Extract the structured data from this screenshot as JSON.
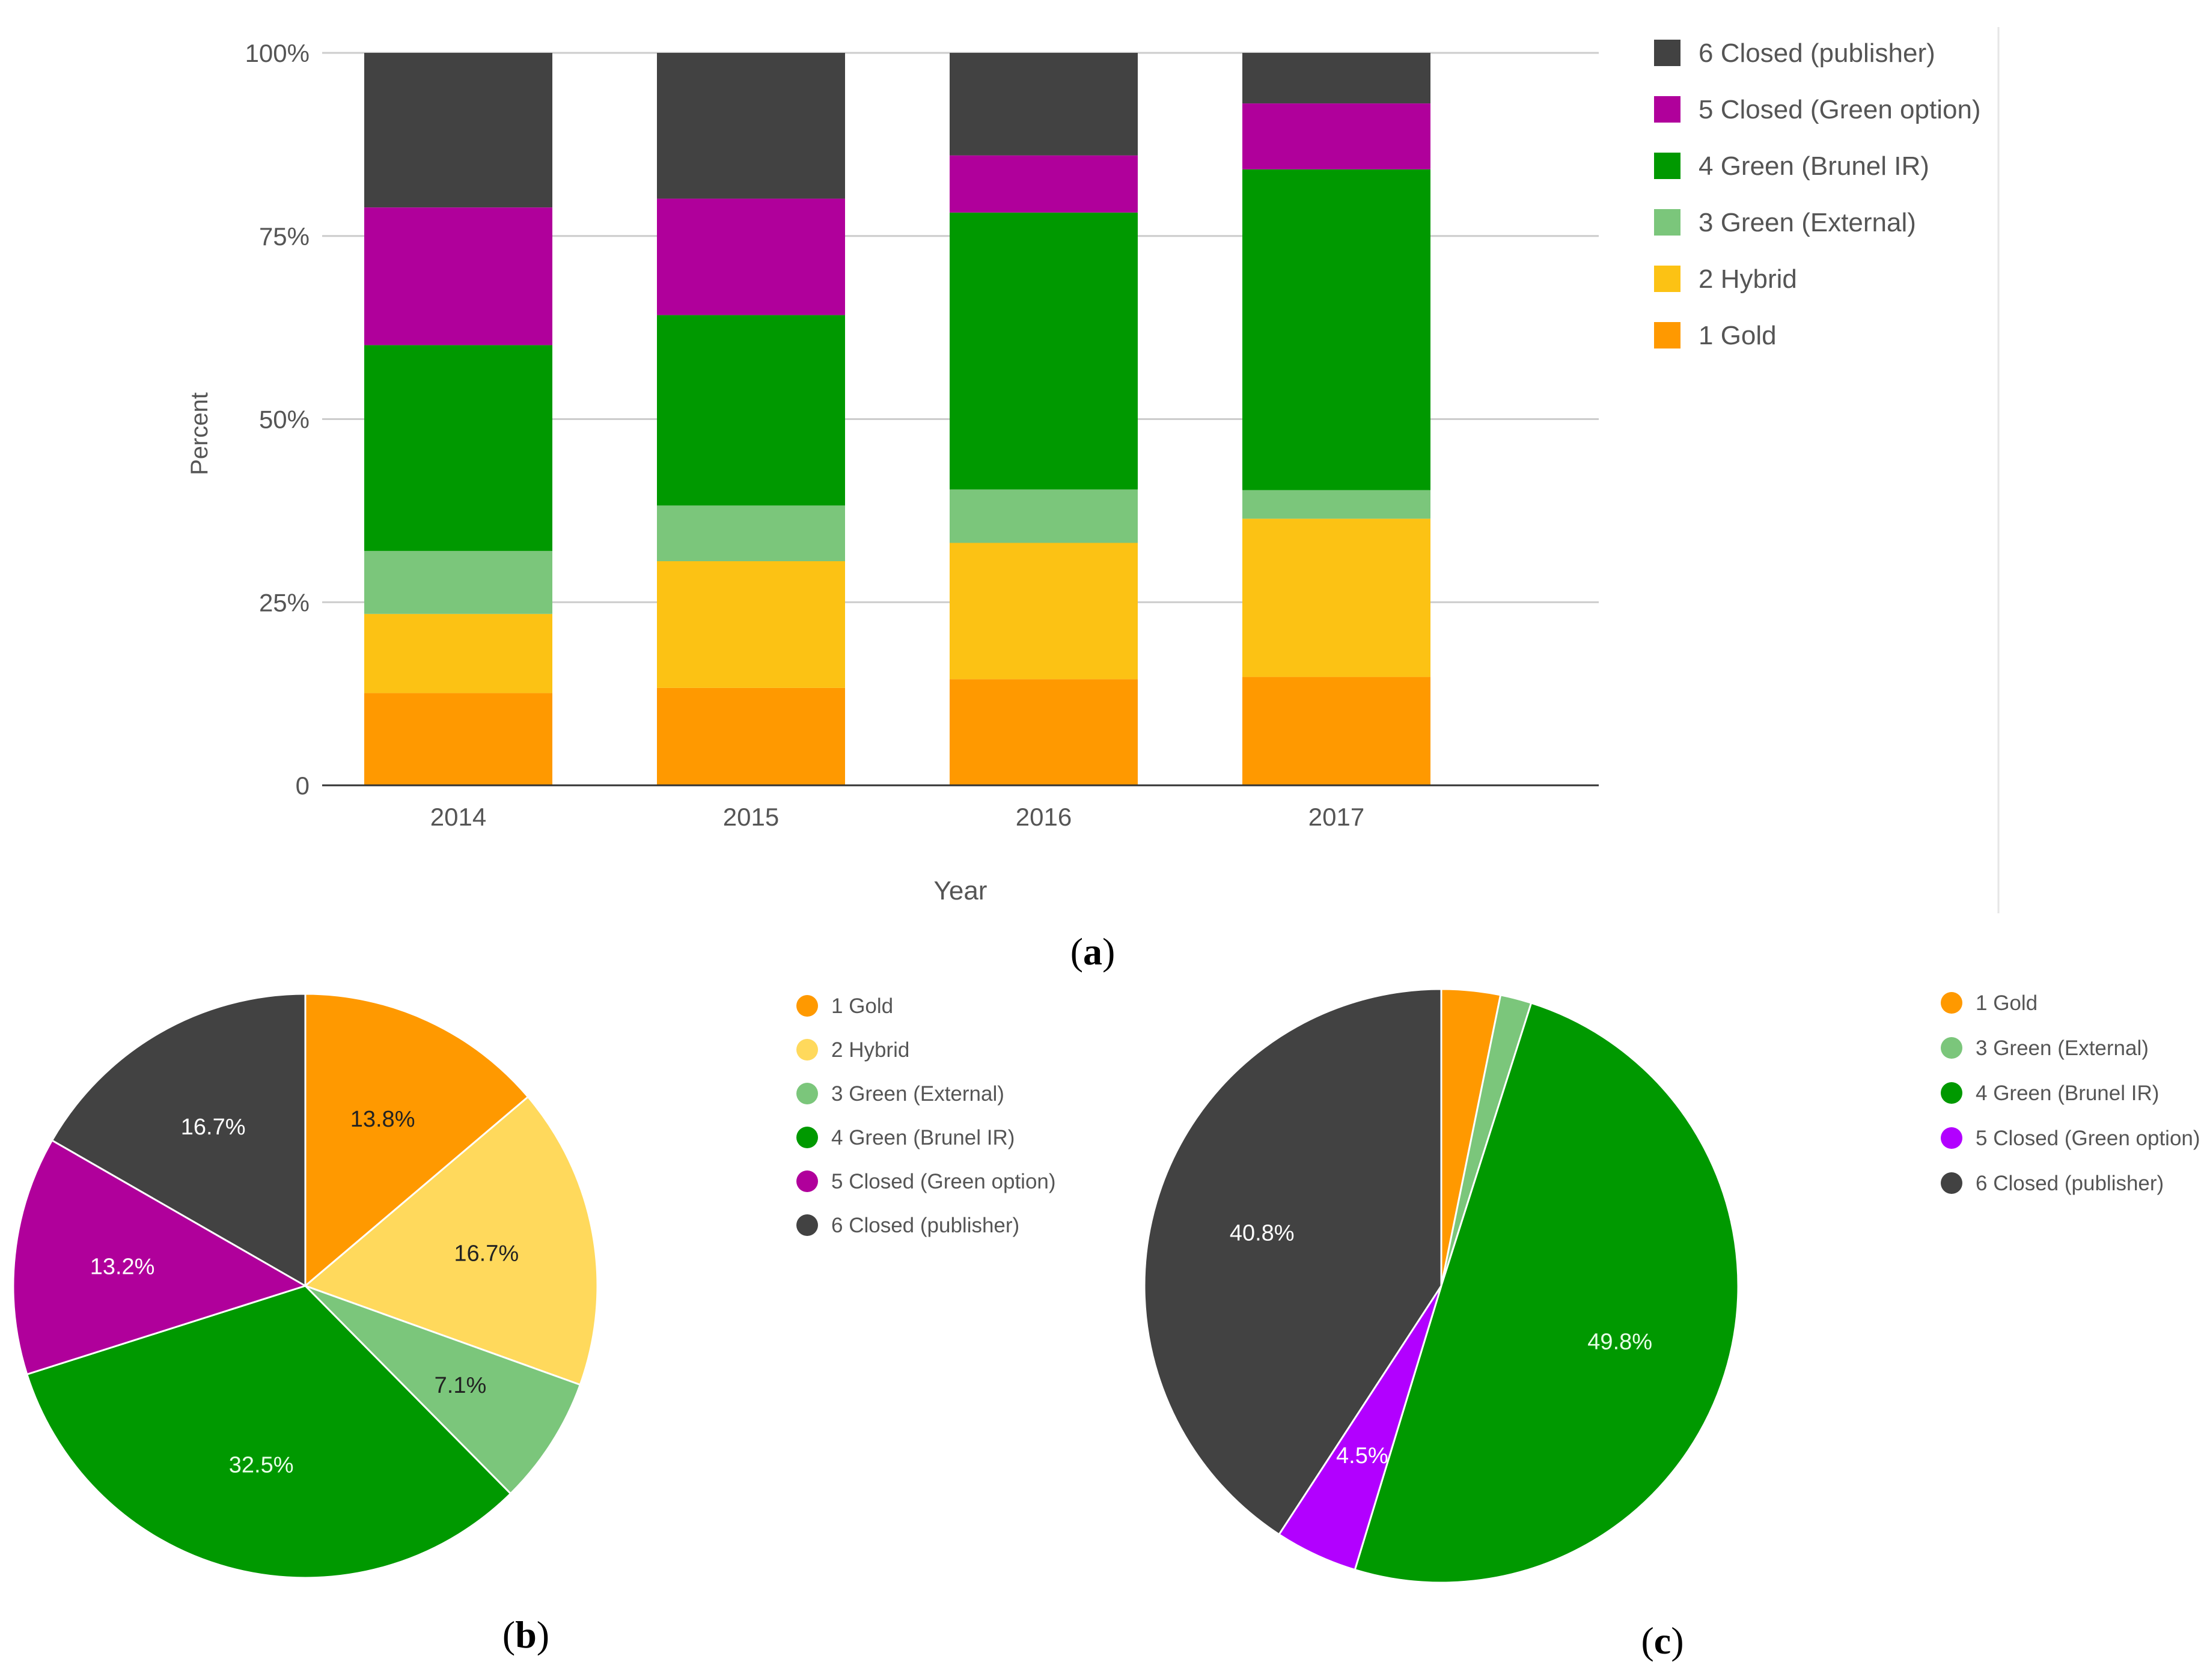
{
  "chart_data": [
    {
      "panel": "a",
      "type": "bar",
      "stacked": true,
      "categories": [
        "2014",
        "2015",
        "2016",
        "2017"
      ],
      "xlabel": "Year",
      "ylabel": "Percent",
      "ylim": [
        0,
        100
      ],
      "ytick_values": [
        0,
        25,
        50,
        75,
        100
      ],
      "ytick_labels": [
        "0",
        "25%",
        "50%",
        "75%",
        "100%"
      ],
      "grid": true,
      "legend_position": "right",
      "series": [
        {
          "name": "1 Gold",
          "color": "#ff9900",
          "values": [
            12.6,
            13.3,
            14.5,
            14.8
          ]
        },
        {
          "name": "2 Hybrid",
          "color": "#fcc214",
          "values": [
            10.8,
            17.3,
            18.6,
            21.6
          ]
        },
        {
          "name": "3 Green (External)",
          "color": "#7bc67b",
          "values": [
            8.6,
            7.6,
            7.3,
            3.9
          ]
        },
        {
          "name": "4 Green (Brunel IR)",
          "color": "#009900",
          "values": [
            28.1,
            26.0,
            37.8,
            43.8
          ]
        },
        {
          "name": "5 Closed (Green option)",
          "color": "#b0009b",
          "values": [
            18.8,
            15.9,
            7.8,
            9.0
          ]
        },
        {
          "name": "6 Closed (publisher)",
          "color": "#424242",
          "values": [
            21.1,
            19.9,
            14.0,
            6.9
          ]
        }
      ],
      "legend_order": [
        "6 Closed (publisher)",
        "5 Closed (Green option)",
        "4 Green (Brunel IR)",
        "3 Green (External)",
        "2 Hybrid",
        "1 Gold"
      ],
      "panel_label": "a"
    },
    {
      "panel": "b",
      "type": "pie",
      "legend_position": "right",
      "slices": [
        {
          "name": "1 Gold",
          "value": 13.8,
          "label": "13.8%",
          "color": "#ff9900",
          "label_color": "#222222"
        },
        {
          "name": "2 Hybrid",
          "value": 16.7,
          "label": "16.7%",
          "color": "#ffd95c",
          "label_color": "#222222"
        },
        {
          "name": "3 Green (External)",
          "value": 7.1,
          "label": "7.1%",
          "color": "#7bc67b",
          "label_color": "#222222"
        },
        {
          "name": "4 Green (Brunel IR)",
          "value": 32.5,
          "label": "32.5%",
          "color": "#009900",
          "label_color": "#e8ffe8"
        },
        {
          "name": "5 Closed (Green option)",
          "value": 13.2,
          "label": "13.2%",
          "color": "#b0009b",
          "label_color": "#ffffff"
        },
        {
          "name": "6 Closed (publisher)",
          "value": 16.7,
          "label": "16.7%",
          "color": "#424242",
          "label_color": "#ffffff"
        }
      ],
      "panel_label": "b"
    },
    {
      "panel": "c",
      "type": "pie",
      "legend_position": "right",
      "slices": [
        {
          "name": "1 Gold",
          "value": 3.2,
          "label": "",
          "color": "#ff9900",
          "label_color": "#222222"
        },
        {
          "name": "3 Green (External)",
          "value": 1.7,
          "label": "",
          "color": "#7bc67b",
          "label_color": "#222222"
        },
        {
          "name": "4 Green (Brunel IR)",
          "value": 49.8,
          "label": "49.8%",
          "color": "#009900",
          "label_color": "#e8ffe8"
        },
        {
          "name": "5 Closed (Green option)",
          "value": 4.5,
          "label": "4.5%",
          "color": "#b200ff",
          "label_color": "#ffffff"
        },
        {
          "name": "6 Closed (publisher)",
          "value": 40.8,
          "label": "40.8%",
          "color": "#424242",
          "label_color": "#ffffff"
        }
      ],
      "legend_labels": [
        "1 Gold",
        "3 Green (External)",
        "4 Green (Brunel IR)",
        "5 Closed (Green option)",
        "6 Closed (publisher)"
      ],
      "panel_label": "c"
    }
  ]
}
